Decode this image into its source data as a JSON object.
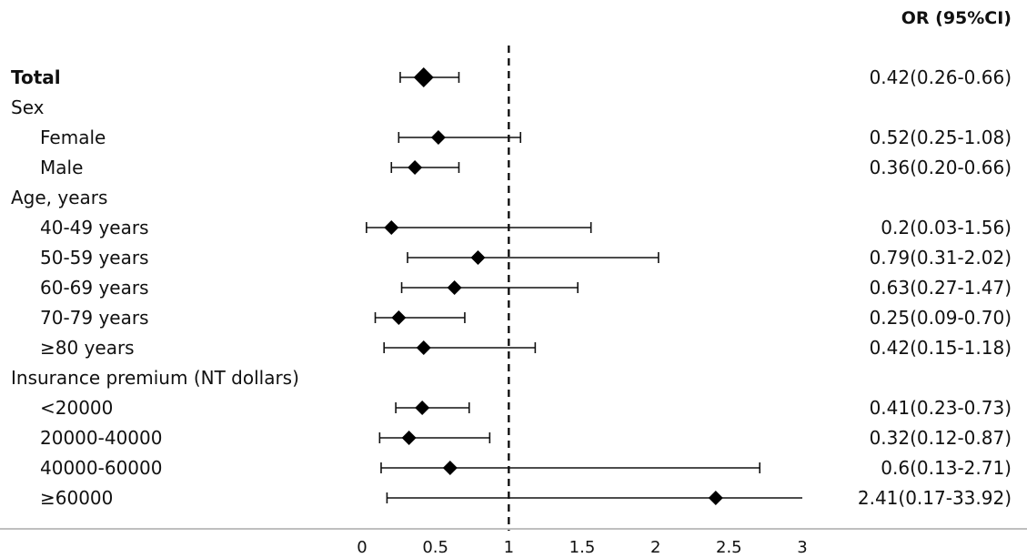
{
  "chart_data": {
    "type": "forest",
    "header": "OR (95%CI)",
    "reference_line": 1,
    "xlim": [
      0,
      3
    ],
    "xticks": [
      "0",
      "0.5",
      "1",
      "1.5",
      "2",
      "2.5",
      "3"
    ],
    "rows": [
      {
        "label": "Total",
        "bold": true,
        "indent": false,
        "or": 0.42,
        "lo": 0.26,
        "hi": 0.66,
        "text": "0.42(0.26-0.66)"
      },
      {
        "label": "Sex",
        "bold": false,
        "indent": false,
        "group": true
      },
      {
        "label": "Female",
        "bold": false,
        "indent": true,
        "or": 0.52,
        "lo": 0.25,
        "hi": 1.08,
        "text": "0.52(0.25-1.08)"
      },
      {
        "label": "Male",
        "bold": false,
        "indent": true,
        "or": 0.36,
        "lo": 0.2,
        "hi": 0.66,
        "text": "0.36(0.20-0.66)"
      },
      {
        "label": "Age, years",
        "bold": false,
        "indent": false,
        "group": true
      },
      {
        "label": "40-49 years",
        "bold": false,
        "indent": true,
        "or": 0.2,
        "lo": 0.03,
        "hi": 1.56,
        "text": "0.2(0.03-1.56)"
      },
      {
        "label": "50-59 years",
        "bold": false,
        "indent": true,
        "or": 0.79,
        "lo": 0.31,
        "hi": 2.02,
        "text": "0.79(0.31-2.02)"
      },
      {
        "label": "60-69 years",
        "bold": false,
        "indent": true,
        "or": 0.63,
        "lo": 0.27,
        "hi": 1.47,
        "text": "0.63(0.27-1.47)"
      },
      {
        "label": "70-79 years",
        "bold": false,
        "indent": true,
        "or": 0.25,
        "lo": 0.09,
        "hi": 0.7,
        "text": "0.25(0.09-0.70)"
      },
      {
        "label": "≥80 years",
        "bold": false,
        "indent": true,
        "or": 0.42,
        "lo": 0.15,
        "hi": 1.18,
        "text": "0.42(0.15-1.18)"
      },
      {
        "label": "Insurance premium (NT dollars)",
        "bold": false,
        "indent": false,
        "group": true
      },
      {
        "label": "<20000",
        "bold": false,
        "indent": true,
        "or": 0.41,
        "lo": 0.23,
        "hi": 0.73,
        "text": "0.41(0.23-0.73)"
      },
      {
        "label": "20000-40000",
        "bold": false,
        "indent": true,
        "or": 0.32,
        "lo": 0.12,
        "hi": 0.87,
        "text": "0.32(0.12-0.87)"
      },
      {
        "label": "40000-60000",
        "bold": false,
        "indent": true,
        "or": 0.6,
        "lo": 0.13,
        "hi": 2.71,
        "text": "0.6(0.13-2.71)"
      },
      {
        "label": "≥60000",
        "bold": false,
        "indent": true,
        "or": 2.41,
        "lo": 0.17,
        "hi": 33.92,
        "text": "2.41(0.17-33.92)"
      }
    ]
  }
}
